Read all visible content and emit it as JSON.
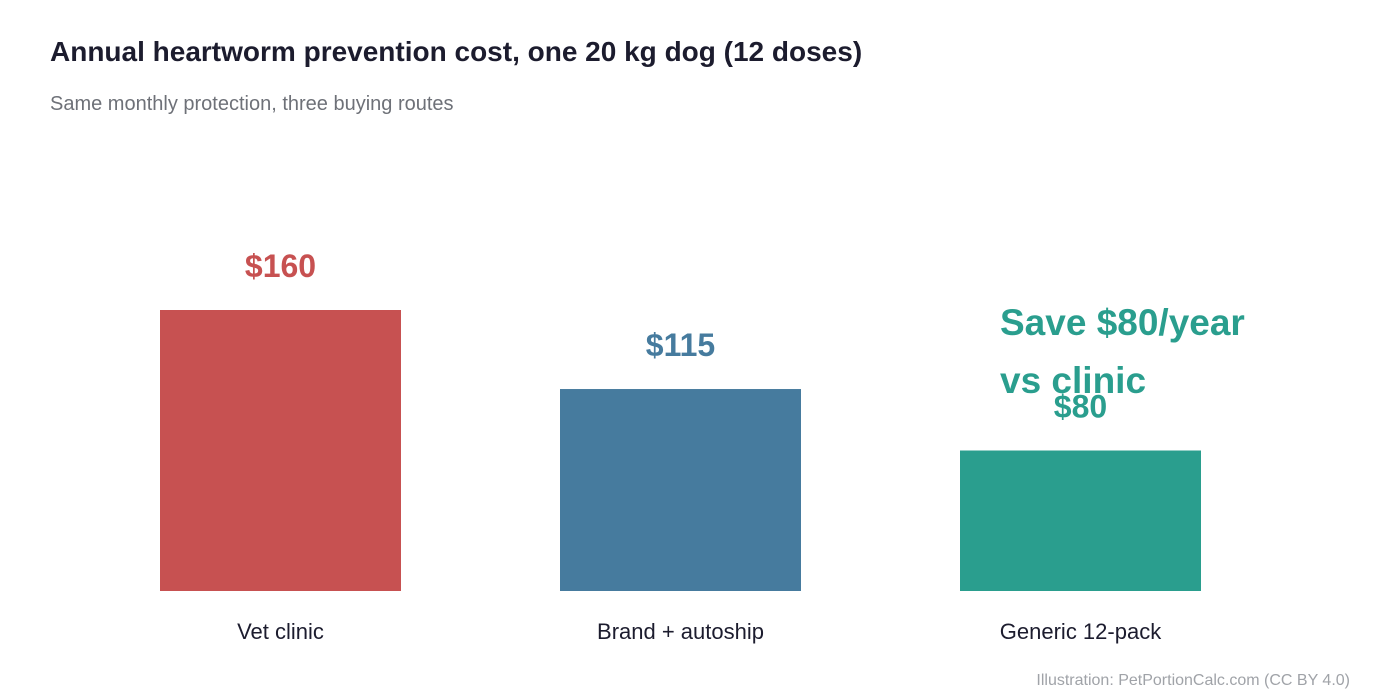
{
  "chart_data": {
    "type": "bar",
    "title": "Annual heartworm prevention cost, one 20 kg dog (12 doses)",
    "subtitle": "Same monthly protection, three buying routes",
    "categories": [
      "Vet clinic",
      "Brand + autoship",
      "Generic 12-pack"
    ],
    "values": [
      160,
      115,
      80
    ],
    "value_labels": [
      "$160",
      "$115",
      "$80"
    ],
    "colors": [
      "#c75151",
      "#467b9e",
      "#2a9e8e"
    ],
    "ylim": [
      0,
      160
    ],
    "grid": false,
    "legend": "none",
    "annotation": {
      "lines": [
        "Save $80/year",
        "vs clinic"
      ],
      "color": "#2a9e8e"
    }
  },
  "footer": {
    "credit": "Illustration: PetPortionCalc.com (CC BY 4.0)"
  }
}
